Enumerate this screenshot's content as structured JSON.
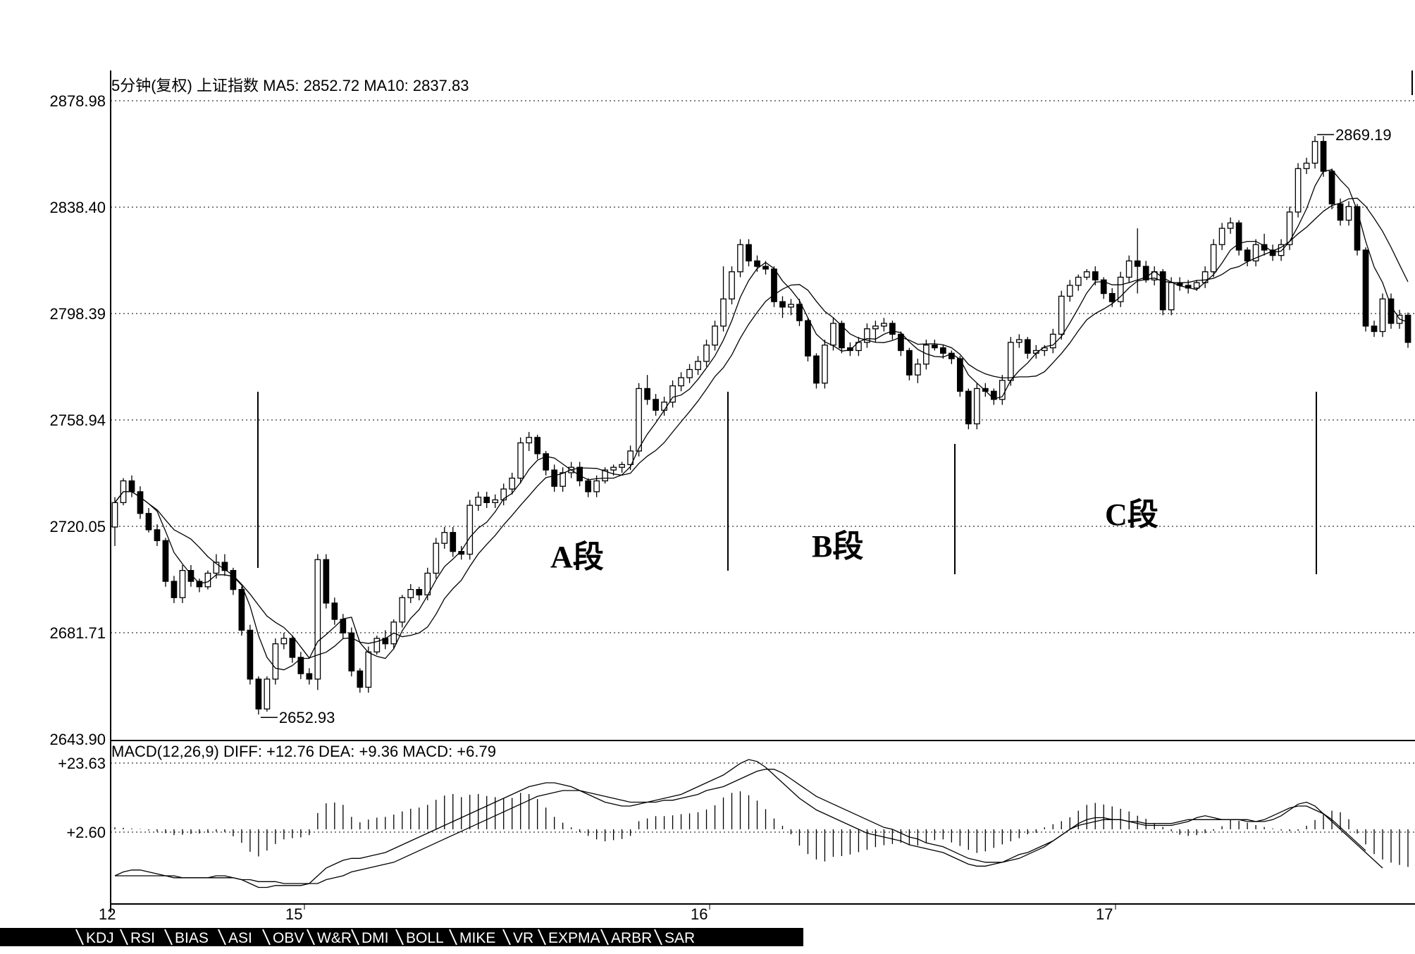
{
  "main_header": "5分钟(复权)  上证指数  MA5: 2852.72  MA10: 2837.83",
  "macd_header": "MACD(12,26,9)  DIFF: +12.76  DEA: +9.36  MACD: +6.79",
  "chart_data": {
    "type": "candlestick",
    "price_axis": {
      "ylim": [
        2643.9,
        2878.98
      ],
      "ticks": [
        "2878.98",
        "2838.40",
        "2798.39",
        "2758.94",
        "2720.05",
        "2681.71",
        "2643.90"
      ]
    },
    "macd_axis": {
      "ticks": [
        "+23.63",
        "+2.60"
      ]
    },
    "x_ticks": [
      "12",
      "15",
      "16",
      "17"
    ],
    "annotations": {
      "low_label": "2652.93",
      "high_label": "2869.19",
      "segments": [
        "A段",
        "B段",
        "C段"
      ]
    },
    "candles": [
      [
        2722,
        2733,
        2715,
        2731
      ],
      [
        2731,
        2740,
        2730,
        2739
      ],
      [
        2739,
        2741,
        2733,
        2735
      ],
      [
        2735,
        2737,
        2725,
        2727
      ],
      [
        2727,
        2729,
        2720,
        2721
      ],
      [
        2721,
        2723,
        2715,
        2717
      ],
      [
        2717,
        2718,
        2700,
        2702
      ],
      [
        2702,
        2704,
        2694,
        2696
      ],
      [
        2696,
        2708,
        2694,
        2706
      ],
      [
        2706,
        2708,
        2700,
        2702
      ],
      [
        2702,
        2703,
        2698,
        2700
      ],
      [
        2700,
        2706,
        2699,
        2705
      ],
      [
        2705,
        2712,
        2703,
        2709
      ],
      [
        2709,
        2712,
        2704,
        2706
      ],
      [
        2706,
        2707,
        2697,
        2699
      ],
      [
        2699,
        2700,
        2682,
        2684
      ],
      [
        2684,
        2686,
        2664,
        2666
      ],
      [
        2666,
        2667,
        2652.93,
        2655
      ],
      [
        2655,
        2667,
        2654,
        2666
      ],
      [
        2666,
        2681,
        2664,
        2679
      ],
      [
        2679,
        2683,
        2677,
        2681
      ],
      [
        2681,
        2682,
        2672,
        2674
      ],
      [
        2674,
        2676,
        2666,
        2668
      ],
      [
        2668,
        2670,
        2664,
        2666
      ],
      [
        2666,
        2712,
        2662,
        2710
      ],
      [
        2710,
        2712,
        2692,
        2694
      ],
      [
        2694,
        2696,
        2686,
        2688
      ],
      [
        2688,
        2690,
        2681,
        2683
      ],
      [
        2683,
        2685,
        2667,
        2669
      ],
      [
        2669,
        2670,
        2661,
        2663
      ],
      [
        2663,
        2678,
        2661,
        2676
      ],
      [
        2676,
        2682,
        2675,
        2681
      ],
      [
        2681,
        2684,
        2677,
        2679
      ],
      [
        2679,
        2688,
        2677,
        2687
      ],
      [
        2687,
        2697,
        2685,
        2696
      ],
      [
        2696,
        2701,
        2694,
        2699
      ],
      [
        2699,
        2700,
        2695,
        2697
      ],
      [
        2697,
        2707,
        2695,
        2705
      ],
      [
        2705,
        2718,
        2703,
        2716
      ],
      [
        2716,
        2722,
        2714,
        2720
      ],
      [
        2720,
        2722,
        2711,
        2713
      ],
      [
        2713,
        2715,
        2710,
        2712
      ],
      [
        2712,
        2732,
        2710,
        2730
      ],
      [
        2730,
        2735,
        2728,
        2733
      ],
      [
        2733,
        2735,
        2729,
        2731
      ],
      [
        2731,
        2734,
        2729,
        2732
      ],
      [
        2732,
        2738,
        2730,
        2736
      ],
      [
        2736,
        2742,
        2734,
        2740
      ],
      [
        2740,
        2755,
        2738,
        2753
      ],
      [
        2753,
        2757,
        2750,
        2755
      ],
      [
        2755,
        2756,
        2747,
        2749
      ],
      [
        2749,
        2750,
        2741,
        2743
      ],
      [
        2743,
        2745,
        2735,
        2737
      ],
      [
        2737,
        2744,
        2735,
        2742
      ],
      [
        2742,
        2746,
        2740,
        2744
      ],
      [
        2744,
        2746,
        2737,
        2739
      ],
      [
        2739,
        2740,
        2733,
        2735
      ],
      [
        2735,
        2741,
        2733,
        2739
      ],
      [
        2739,
        2744,
        2738,
        2743
      ],
      [
        2743,
        2745,
        2741,
        2744
      ],
      [
        2744,
        2746,
        2742,
        2745
      ],
      [
        2745,
        2752,
        2743,
        2750
      ],
      [
        2750,
        2775,
        2748,
        2773
      ],
      [
        2773,
        2778,
        2767,
        2769
      ],
      [
        2769,
        2771,
        2763,
        2765
      ],
      [
        2765,
        2770,
        2763,
        2768
      ],
      [
        2768,
        2776,
        2766,
        2774
      ],
      [
        2774,
        2779,
        2772,
        2777
      ],
      [
        2777,
        2782,
        2775,
        2780
      ],
      [
        2780,
        2785,
        2778,
        2783
      ],
      [
        2783,
        2791,
        2781,
        2789
      ],
      [
        2789,
        2798,
        2787,
        2796
      ],
      [
        2796,
        2818,
        2794,
        2806
      ],
      [
        2806,
        2818,
        2804,
        2816
      ],
      [
        2816,
        2828,
        2814,
        2826
      ],
      [
        2826,
        2828,
        2818,
        2820
      ],
      [
        2820,
        2822,
        2816,
        2818
      ],
      [
        2818,
        2820,
        2815,
        2817
      ],
      [
        2817,
        2818,
        2803,
        2805
      ],
      [
        2805,
        2807,
        2799,
        2803
      ],
      [
        2803,
        2806,
        2800,
        2804
      ],
      [
        2804,
        2806,
        2796,
        2798
      ],
      [
        2798,
        2799,
        2783,
        2785
      ],
      [
        2785,
        2786,
        2773,
        2775
      ],
      [
        2775,
        2791,
        2773,
        2789
      ],
      [
        2789,
        2799,
        2787,
        2797
      ],
      [
        2797,
        2798,
        2786,
        2788
      ],
      [
        2788,
        2790,
        2785,
        2787
      ],
      [
        2787,
        2792,
        2785,
        2790
      ],
      [
        2790,
        2797,
        2788,
        2795
      ],
      [
        2795,
        2798,
        2790,
        2796
      ],
      [
        2796,
        2799,
        2794,
        2797
      ],
      [
        2797,
        2798,
        2791,
        2793
      ],
      [
        2793,
        2794,
        2785,
        2787
      ],
      [
        2787,
        2788,
        2776,
        2778
      ],
      [
        2778,
        2784,
        2775,
        2782
      ],
      [
        2782,
        2791,
        2780,
        2789
      ],
      [
        2789,
        2791,
        2787,
        2788
      ],
      [
        2788,
        2789,
        2784,
        2786
      ],
      [
        2786,
        2787,
        2782,
        2784
      ],
      [
        2784,
        2785,
        2770,
        2772
      ],
      [
        2772,
        2773,
        2758,
        2760
      ],
      [
        2760,
        2775,
        2758,
        2773
      ],
      [
        2773,
        2775,
        2770,
        2772
      ],
      [
        2772,
        2773,
        2767,
        2769
      ],
      [
        2769,
        2778,
        2767,
        2776
      ],
      [
        2776,
        2792,
        2774,
        2790
      ],
      [
        2790,
        2793,
        2788,
        2791
      ],
      [
        2791,
        2792,
        2784,
        2786
      ],
      [
        2786,
        2789,
        2784,
        2787
      ],
      [
        2787,
        2789,
        2785,
        2788
      ],
      [
        2788,
        2795,
        2786,
        2793
      ],
      [
        2793,
        2809,
        2791,
        2807
      ],
      [
        2807,
        2813,
        2805,
        2811
      ],
      [
        2811,
        2815,
        2809,
        2814
      ],
      [
        2814,
        2817,
        2813,
        2816
      ],
      [
        2816,
        2818,
        2811,
        2813
      ],
      [
        2813,
        2814,
        2806,
        2808
      ],
      [
        2808,
        2810,
        2803,
        2805
      ],
      [
        2805,
        2816,
        2803,
        2814
      ],
      [
        2814,
        2822,
        2812,
        2820
      ],
      [
        2820,
        2832,
        2808,
        2818
      ],
      [
        2818,
        2820,
        2812,
        2813
      ],
      [
        2813,
        2818,
        2811,
        2816
      ],
      [
        2816,
        2817,
        2800,
        2802
      ],
      [
        2802,
        2814,
        2800,
        2812
      ],
      [
        2812,
        2814,
        2809,
        2811
      ],
      [
        2811,
        2813,
        2808,
        2810
      ],
      [
        2810,
        2813,
        2809,
        2812
      ],
      [
        2812,
        2818,
        2810,
        2816
      ],
      [
        2816,
        2828,
        2814,
        2826
      ],
      [
        2826,
        2834,
        2824,
        2832
      ],
      [
        2832,
        2836,
        2830,
        2834
      ],
      [
        2834,
        2835,
        2822,
        2824
      ],
      [
        2824,
        2825,
        2818,
        2820
      ],
      [
        2820,
        2828,
        2818,
        2826
      ],
      [
        2826,
        2830,
        2822,
        2824
      ],
      [
        2824,
        2826,
        2820,
        2822
      ],
      [
        2822,
        2828,
        2820,
        2826
      ],
      [
        2826,
        2840,
        2824,
        2838
      ],
      [
        2838,
        2856,
        2836,
        2854
      ],
      [
        2854,
        2858,
        2852,
        2856
      ],
      [
        2856,
        2866,
        2854,
        2864
      ],
      [
        2864,
        2866,
        2851,
        2853
      ],
      [
        2853,
        2854,
        2839,
        2841
      ],
      [
        2841,
        2843,
        2833,
        2835
      ],
      [
        2835,
        2842,
        2833,
        2840
      ],
      [
        2840,
        2841,
        2822,
        2824
      ],
      [
        2824,
        2825,
        2794,
        2796
      ],
      [
        2796,
        2798,
        2792,
        2794
      ],
      [
        2794,
        2808,
        2792,
        2806
      ],
      [
        2806,
        2808,
        2795,
        2797
      ],
      [
        2797,
        2802,
        2795,
        2800
      ],
      [
        2800,
        2801,
        2788,
        2790
      ]
    ],
    "macd": {
      "hist": [
        0.5,
        0.4,
        0.2,
        0.1,
        -0.3,
        -0.6,
        -1,
        -1.5,
        -1.4,
        -1.2,
        -1.1,
        -0.9,
        -0.6,
        -0.7,
        -1.8,
        -3.5,
        -5.8,
        -7,
        -5.5,
        -3.8,
        -2.6,
        -2.3,
        -2.1,
        -1.5,
        4.2,
        6.7,
        6.9,
        6.3,
        3.2,
        1.8,
        2.5,
        3,
        3.2,
        3.8,
        4.6,
        5.3,
        5.6,
        6.3,
        7.6,
        8.7,
        9.1,
        8.3,
        8.9,
        9.1,
        8.6,
        8.3,
        7.9,
        8.1,
        9.4,
        9.1,
        7.8,
        5.6,
        3.2,
        1.7,
        0.5,
        -0.7,
        -1.7,
        -2.6,
        -3.1,
        -2.8,
        -2.5,
        -1.7,
        2.1,
        2.8,
        3.4,
        3.4,
        3.6,
        3.9,
        4.1,
        4.4,
        5.1,
        6.2,
        8.2,
        9.4,
        9.8,
        8.8,
        7.4,
        5.2,
        2.8,
        0.9,
        -1.3,
        -4.2,
        -6.4,
        -7.8,
        -8.3,
        -7.1,
        -6.9,
        -6.5,
        -5.9,
        -5.3,
        -4.6,
        -4.1,
        -3.8,
        -3.5,
        -4.1,
        -4.2,
        -3.5,
        -2.8,
        -2.6,
        -3.4,
        -4.3,
        -5.3,
        -6.1,
        -5.7,
        -4.8,
        -3.9,
        -3.1,
        -2.3,
        -1.3,
        -0.9,
        0.5,
        1.3,
        2.1,
        3.1,
        4.8,
        6.3,
        6.8,
        6.4,
        5.9,
        5.3,
        4.6,
        3.5,
        2.7,
        1.4,
        0.6,
        -0.5,
        -1.4,
        -1.7,
        -1.5,
        -1,
        -0.4,
        0.8,
        2.4,
        2.2,
        1.7,
        1.1,
        0.6,
        0.2,
        -0.3,
        -0.5,
        -0.4,
        0.9,
        2.4,
        3.9,
        4.8,
        4.4,
        2.6,
        -1.1,
        -3.9,
        -6.4,
        -7.8,
        -8.6,
        -9.2,
        -9.7
      ],
      "diff": [
        -12,
        -11,
        -10.5,
        -10.5,
        -11,
        -11.5,
        -12,
        -12.5,
        -12.5,
        -12.5,
        -12.5,
        -12.5,
        -12,
        -12,
        -12.5,
        -13,
        -14,
        -15,
        -15,
        -14.5,
        -14.5,
        -14.5,
        -14.5,
        -14,
        -12,
        -10,
        -9,
        -8,
        -7.5,
        -7.5,
        -7,
        -6.5,
        -6,
        -5,
        -4,
        -3,
        -2,
        -1,
        0,
        1,
        2,
        3,
        4,
        5,
        6,
        7,
        8,
        9,
        10,
        11,
        11.5,
        12,
        12,
        11.5,
        11,
        10,
        9,
        8,
        7,
        6.5,
        6,
        6,
        6.5,
        7,
        7.5,
        8,
        8.5,
        9,
        10,
        11,
        12,
        13,
        14,
        15.5,
        17,
        18,
        17.5,
        16,
        14,
        12,
        10,
        8,
        6.5,
        5,
        4,
        3,
        2,
        1,
        0,
        -1,
        -1.5,
        -2,
        -2.5,
        -3,
        -4,
        -4.5,
        -5,
        -5.5,
        -6,
        -7,
        -8,
        -9,
        -9.5,
        -9.5,
        -9,
        -8.5,
        -7.5,
        -6.5,
        -6,
        -5,
        -4,
        -3,
        -1.5,
        0,
        1.5,
        2.5,
        3,
        3,
        2.5,
        2.5,
        2,
        1.5,
        1,
        1,
        1,
        1,
        1.5,
        2,
        3,
        3.5,
        3,
        2.5,
        2.5,
        2.5,
        2.5,
        2,
        2,
        2.5,
        3.5,
        5,
        6.5,
        7,
        6,
        4,
        2,
        0,
        -2,
        -4,
        -6,
        -8,
        -10
      ],
      "dea": [
        -12,
        -12,
        -12,
        -12,
        -12,
        -12,
        -12,
        -12,
        -12.5,
        -12.5,
        -12.5,
        -12.5,
        -12.5,
        -12.5,
        -12.5,
        -13,
        -13,
        -13.5,
        -13.5,
        -13.5,
        -14,
        -14,
        -14,
        -14,
        -14,
        -13,
        -12.5,
        -12,
        -11,
        -10.5,
        -10,
        -9.5,
        -9,
        -8.5,
        -7.5,
        -6.5,
        -5.5,
        -4.5,
        -3.5,
        -2.5,
        -1.5,
        -0.5,
        0.5,
        1.5,
        2.5,
        3.5,
        4.5,
        5.5,
        6.5,
        7.5,
        8.5,
        9,
        9.5,
        10,
        10,
        10,
        9.5,
        9,
        8.5,
        8,
        7.5,
        7,
        7,
        7,
        7,
        7.5,
        7.5,
        8,
        8.5,
        9,
        10,
        10.5,
        11,
        12,
        13,
        14,
        15,
        15.5,
        15.5,
        14.5,
        13,
        11.5,
        10,
        8.5,
        7.5,
        6.5,
        5.5,
        4.5,
        3.5,
        2.5,
        1.5,
        0.5,
        0,
        -1,
        -2,
        -2.5,
        -3.5,
        -4,
        -4.5,
        -5.5,
        -6.5,
        -7.5,
        -8,
        -8.5,
        -8.5,
        -8.5,
        -8,
        -7.5,
        -6.5,
        -5.5,
        -4.5,
        -3,
        -1.5,
        0,
        1,
        1.5,
        2,
        2.5,
        2.5,
        2.5,
        2,
        2,
        1.5,
        1.5,
        1.5,
        1.5,
        2,
        2.5,
        2.5,
        2.5,
        2.5,
        2.5,
        2.5,
        2.5,
        2,
        2,
        2.5,
        3.5,
        4.5,
        5.5,
        6,
        6,
        5,
        4,
        2.5,
        0.5,
        -1.5,
        -3.5,
        -5.5
      ]
    }
  },
  "tabs": [
    "KDJ",
    "RSI",
    "BIAS",
    "ASI",
    "OBV",
    "W&R",
    "DMI",
    "BOLL",
    "MIKE",
    "VR",
    "EXPMA",
    "ARBR",
    "SAR"
  ]
}
